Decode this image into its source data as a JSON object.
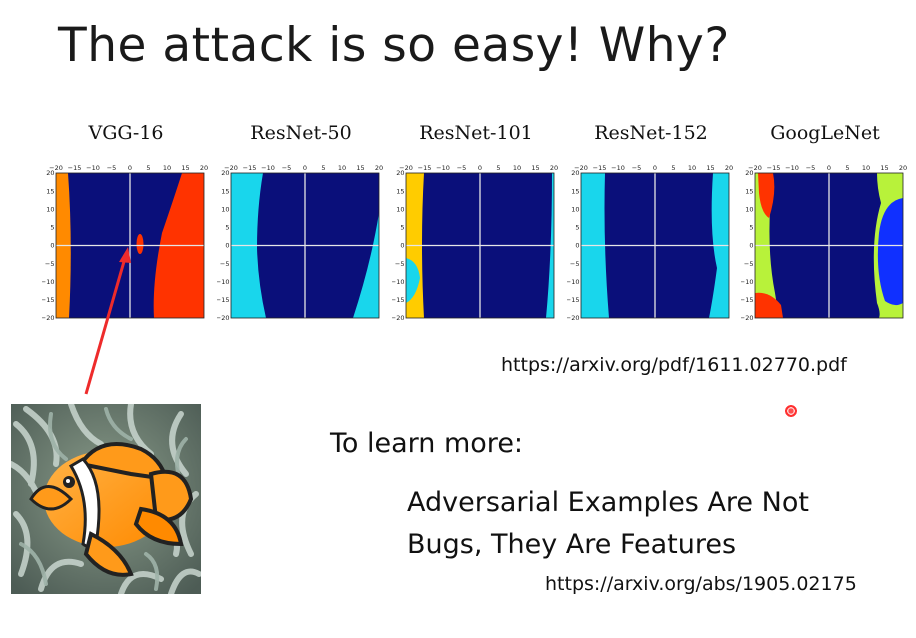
{
  "title": "The attack is so easy! Why?",
  "panels": [
    {
      "name": "VGG-16"
    },
    {
      "name": "ResNet-50"
    },
    {
      "name": "ResNet-101"
    },
    {
      "name": "ResNet-152"
    },
    {
      "name": "GoogLeNet"
    }
  ],
  "axis_ticks": [
    "−20",
    "−15",
    "−10",
    "−5",
    "0",
    "5",
    "10",
    "15",
    "20"
  ],
  "y_ticks": [
    "20",
    "15",
    "10",
    "5",
    "0",
    "−5",
    "−10",
    "−15",
    "−20"
  ],
  "colors": {
    "navy": "#0a0f7a",
    "cyan": "#19d6ec",
    "orange": "#ff8a00",
    "red": "#ff3300",
    "yellow": "#ffcc00",
    "lime": "#b8f23a",
    "blue": "#1030ff"
  },
  "url1": "https://arxiv.org/pdf/1611.02770.pdf",
  "learn_more": "To learn more:",
  "paper_line1": "Adversarial Examples Are Not",
  "paper_line2": "Bugs, They Are Features",
  "url2": "https://arxiv.org/abs/1905.02175"
}
